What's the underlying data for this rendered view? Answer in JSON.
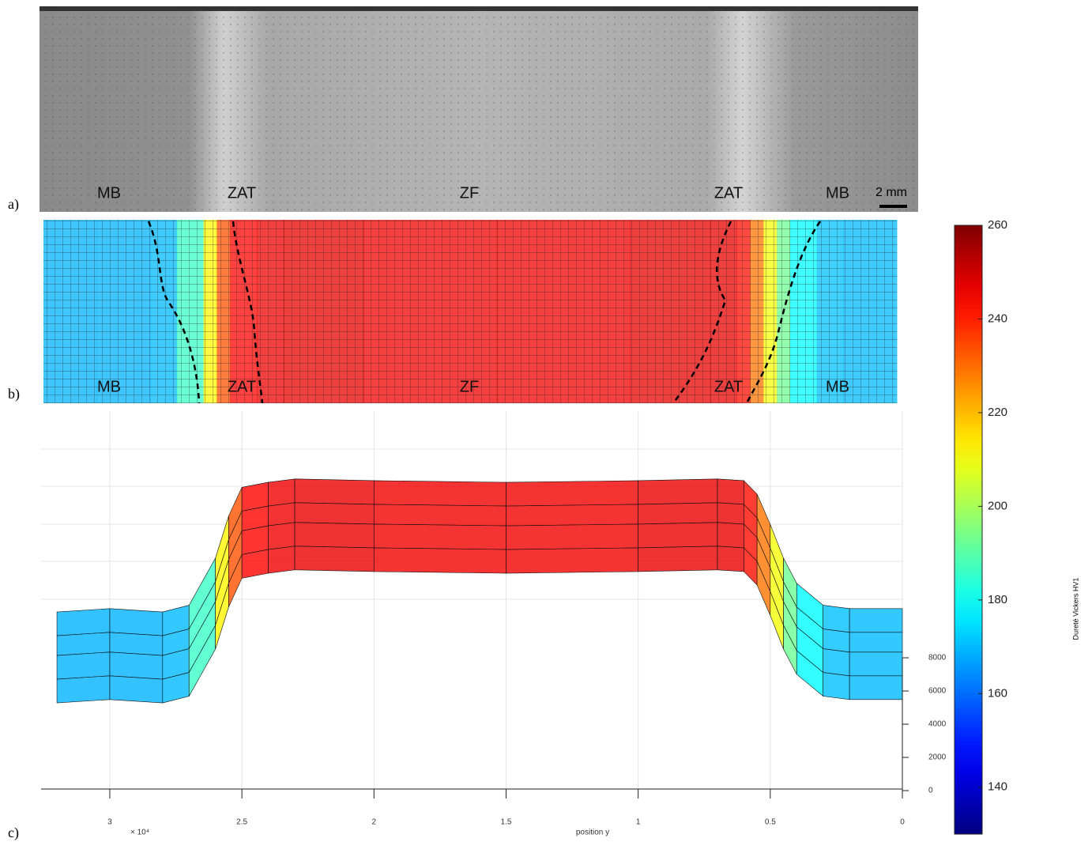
{
  "panels": {
    "a": {
      "label": "a)",
      "zones": [
        "MB",
        "ZAT",
        "ZF",
        "ZAT",
        "MB"
      ],
      "scale_bar": "2 mm"
    },
    "b": {
      "label": "b)",
      "zones": [
        "MB",
        "ZAT",
        "ZF",
        "ZAT",
        "MB"
      ]
    },
    "c": {
      "label": "c)",
      "xlabel": "position y",
      "x_exponent": "× 10⁴",
      "xlim": [
        3.26,
        0
      ],
      "xticks": [
        3,
        2.5,
        2,
        1.5,
        1,
        0.5,
        0
      ],
      "zticks": [
        0,
        2000,
        4000,
        6000,
        8000
      ]
    }
  },
  "profile": {
    "position": [
      3.2,
      3.0,
      2.8,
      2.7,
      2.6,
      2.55,
      2.5,
      2.4,
      2.3,
      2.0,
      1.5,
      1.0,
      0.7,
      0.6,
      0.55,
      0.5,
      0.45,
      0.4,
      0.3,
      0.2,
      0.0
    ],
    "hardness": [
      168,
      170,
      168,
      172,
      200,
      225,
      242,
      245,
      247,
      246,
      245,
      246,
      247,
      246,
      238,
      220,
      200,
      185,
      172,
      170,
      170
    ]
  },
  "colorbar": {
    "label": "Dureté Vickers HV1",
    "lim": [
      130,
      260
    ],
    "ticks": [
      140,
      160,
      180,
      200,
      220,
      240,
      260
    ]
  }
}
